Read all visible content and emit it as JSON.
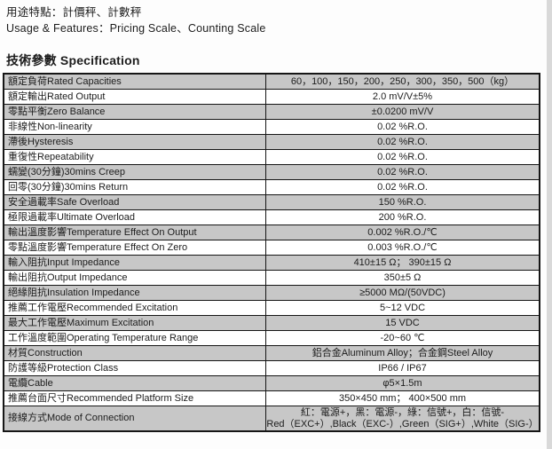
{
  "header": {
    "usage_zh": "用途特點：計價秤、計數秤",
    "usage_en": "Usage & Features：Pricing Scale、Counting Scale",
    "section_title_zh": "技術參數",
    "section_title_en": "Specification"
  },
  "spec_table": {
    "rows": [
      {
        "label": "額定負荷Rated Capacities",
        "value": "60，100，150，200，250，300，350，500（kg）"
      },
      {
        "label": "額定輸出Rated Output",
        "value": "2.0 mV/V±5%"
      },
      {
        "label": "零點平衡Zero Balance",
        "value": "±0.0200 mV/V"
      },
      {
        "label": "非線性Non-linearity",
        "value": "0.02 %R.O."
      },
      {
        "label": "滯後Hysteresis",
        "value": "0.02 %R.O."
      },
      {
        "label": "重復性Repeatability",
        "value": "0.02 %R.O."
      },
      {
        "label": "蠕變(30分鐘)30mins Creep",
        "value": "0.02 %R.O."
      },
      {
        "label": "回零(30分鐘)30mins Return",
        "value": "0.02 %R.O."
      },
      {
        "label": "安全過載率Safe Overload",
        "value": "150 %R.O."
      },
      {
        "label": "極限過載率Ultimate Overload",
        "value": "200 %R.O."
      },
      {
        "label": "輸出溫度影響Temperature Effect On Output",
        "value": "0.002 %R.O./℃"
      },
      {
        "label": "零點溫度影響Temperature Effect On Zero",
        "value": "0.003 %R.O./℃"
      },
      {
        "label": "輸入阻抗Input Impedance",
        "value": "410±15 Ω； 390±15 Ω"
      },
      {
        "label": "輸出阻抗Output Impedance",
        "value": "350±5 Ω"
      },
      {
        "label": "絕緣阻抗Insulation Impedance",
        "value": "≥5000 MΩ/(50VDC)"
      },
      {
        "label": "推薦工作電壓Recommended Excitation",
        "value": "5~12 VDC"
      },
      {
        "label": "最大工作電壓Maximum Excitation",
        "value": "15 VDC"
      },
      {
        "label": "工作溫度範圍Operating Temperature Range",
        "value": "-20~60 ℃"
      },
      {
        "label": "材質Construction",
        "value": "鋁合金Aluminum Alloy；合金鋼Steel Alloy"
      },
      {
        "label": "防護等級Protection Class",
        "value": "IP66 / IP67"
      },
      {
        "label": "電纜Cable",
        "value": "φ5×1.5m"
      },
      {
        "label": "推薦台面尺寸Recommended Platform Size",
        "value": "350×450 mm； 400×500 mm"
      },
      {
        "label": "接線方式Mode of Connection",
        "value": "紅：電源+，黑：電源-，綠：信號+，白：信號-\nRed（EXC+）,Black（EXC-）,Green（SIG+）,White（SIG-）"
      }
    ]
  },
  "colors": {
    "row_shaded": "#c7c7c7",
    "border": "#161616",
    "scan_edge": "#d9d9d9"
  }
}
